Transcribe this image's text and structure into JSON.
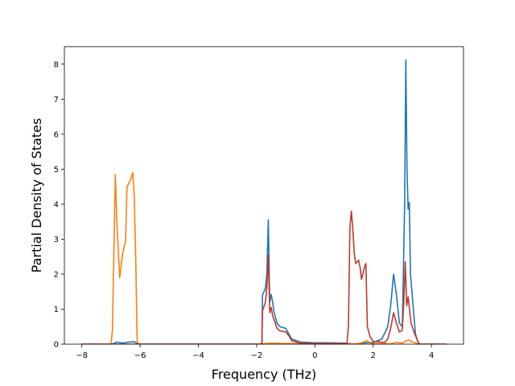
{
  "chart_data": {
    "type": "line",
    "title": "",
    "xlabel": "Frequency (THz)",
    "ylabel": "Partial Density of States",
    "xlim": [
      -8.6,
      5.1
    ],
    "ylim": [
      0,
      8.5
    ],
    "xticks": [
      -8,
      -6,
      -4,
      -2,
      0,
      2,
      4
    ],
    "yticks": [
      0,
      1,
      2,
      3,
      4,
      5,
      6,
      7,
      8
    ],
    "xtick_labels": [
      "−8",
      "−6",
      "−4",
      "−2",
      "0",
      "2",
      "4"
    ],
    "ytick_labels": [
      "0",
      "1",
      "2",
      "3",
      "4",
      "5",
      "6",
      "7",
      "8"
    ],
    "grid": false,
    "legend": "none",
    "series": [
      {
        "color": "#1f77b4",
        "points": [
          [
            -8.0,
            0
          ],
          [
            -7.0,
            0
          ],
          [
            -6.9,
            0.02
          ],
          [
            -6.8,
            0.06
          ],
          [
            -6.6,
            0.03
          ],
          [
            -6.4,
            0.06
          ],
          [
            -6.2,
            0.07
          ],
          [
            -6.1,
            0.02
          ],
          [
            -6.0,
            0
          ],
          [
            -1.9,
            0
          ],
          [
            -1.82,
            0.02
          ],
          [
            -1.8,
            1.4
          ],
          [
            -1.7,
            1.6
          ],
          [
            -1.65,
            2.0
          ],
          [
            -1.6,
            3.55
          ],
          [
            -1.55,
            1.2
          ],
          [
            -1.5,
            1.42
          ],
          [
            -1.45,
            1.2
          ],
          [
            -1.4,
            0.9
          ],
          [
            -1.3,
            0.6
          ],
          [
            -1.2,
            0.5
          ],
          [
            -1.0,
            0.45
          ],
          [
            -0.9,
            0.3
          ],
          [
            -0.8,
            0.15
          ],
          [
            -0.5,
            0.06
          ],
          [
            0,
            0.04
          ],
          [
            0.5,
            0.04
          ],
          [
            1.0,
            0.03
          ],
          [
            1.2,
            0.02
          ],
          [
            1.3,
            0
          ],
          [
            1.6,
            0.03
          ],
          [
            2.0,
            0.05
          ],
          [
            2.3,
            0.15
          ],
          [
            2.5,
            0.5
          ],
          [
            2.6,
            1.1
          ],
          [
            2.7,
            2.0
          ],
          [
            2.8,
            1.4
          ],
          [
            2.9,
            0.6
          ],
          [
            3.0,
            0.5
          ],
          [
            3.08,
            4.0
          ],
          [
            3.12,
            8.12
          ],
          [
            3.16,
            5.0
          ],
          [
            3.2,
            3.85
          ],
          [
            3.24,
            4.05
          ],
          [
            3.28,
            2.0
          ],
          [
            3.35,
            1.3
          ],
          [
            3.45,
            0.3
          ],
          [
            3.55,
            0.02
          ],
          [
            3.6,
            0
          ],
          [
            4.5,
            0
          ]
        ]
      },
      {
        "color": "#ff7f0e",
        "points": [
          [
            -8.0,
            0
          ],
          [
            -7.0,
            0
          ],
          [
            -6.95,
            0.4
          ],
          [
            -6.85,
            4.85
          ],
          [
            -6.8,
            3.5
          ],
          [
            -6.7,
            1.9
          ],
          [
            -6.6,
            2.6
          ],
          [
            -6.5,
            2.95
          ],
          [
            -6.45,
            4.5
          ],
          [
            -6.35,
            4.65
          ],
          [
            -6.25,
            4.9
          ],
          [
            -6.2,
            4.2
          ],
          [
            -6.15,
            2.4
          ],
          [
            -6.1,
            0.05
          ],
          [
            -6.0,
            0
          ],
          [
            -2.0,
            0
          ],
          [
            -1.5,
            0.03
          ],
          [
            -1.0,
            0.02
          ],
          [
            0,
            0.01
          ],
          [
            1.5,
            0.01
          ],
          [
            1.8,
            0.1
          ],
          [
            1.9,
            0.02
          ],
          [
            2.6,
            0.01
          ],
          [
            2.8,
            0.05
          ],
          [
            3.0,
            0.03
          ],
          [
            3.2,
            0.12
          ],
          [
            3.4,
            0.05
          ],
          [
            3.55,
            0
          ],
          [
            4.5,
            0
          ]
        ]
      },
      {
        "color": "#c0392b",
        "points": [
          [
            -8.0,
            0
          ],
          [
            -1.9,
            0
          ],
          [
            -1.82,
            0.02
          ],
          [
            -1.8,
            0.95
          ],
          [
            -1.7,
            1.2
          ],
          [
            -1.65,
            1.6
          ],
          [
            -1.6,
            2.55
          ],
          [
            -1.55,
            0.9
          ],
          [
            -1.5,
            1.05
          ],
          [
            -1.45,
            0.8
          ],
          [
            -1.4,
            0.7
          ],
          [
            -1.3,
            0.45
          ],
          [
            -1.2,
            0.38
          ],
          [
            -1.0,
            0.35
          ],
          [
            -0.9,
            0.25
          ],
          [
            -0.8,
            0.1
          ],
          [
            -0.5,
            0.03
          ],
          [
            0,
            0.02
          ],
          [
            1.0,
            0.02
          ],
          [
            1.1,
            0.03
          ],
          [
            1.15,
            0.5
          ],
          [
            1.2,
            3.3
          ],
          [
            1.25,
            3.8
          ],
          [
            1.3,
            3.3
          ],
          [
            1.35,
            2.6
          ],
          [
            1.4,
            2.3
          ],
          [
            1.45,
            2.35
          ],
          [
            1.5,
            2.4
          ],
          [
            1.55,
            2.2
          ],
          [
            1.6,
            1.85
          ],
          [
            1.7,
            2.2
          ],
          [
            1.75,
            2.3
          ],
          [
            1.8,
            0.5
          ],
          [
            1.9,
            0.2
          ],
          [
            2.0,
            0.08
          ],
          [
            2.4,
            0.05
          ],
          [
            2.5,
            0.15
          ],
          [
            2.6,
            0.45
          ],
          [
            2.7,
            0.9
          ],
          [
            2.8,
            0.6
          ],
          [
            2.9,
            0.35
          ],
          [
            3.0,
            0.4
          ],
          [
            3.05,
            1.2
          ],
          [
            3.1,
            2.35
          ],
          [
            3.15,
            1.1
          ],
          [
            3.2,
            1.35
          ],
          [
            3.3,
            0.6
          ],
          [
            3.4,
            0.35
          ],
          [
            3.55,
            0.05
          ],
          [
            3.6,
            0
          ],
          [
            4.5,
            0
          ]
        ]
      }
    ]
  }
}
